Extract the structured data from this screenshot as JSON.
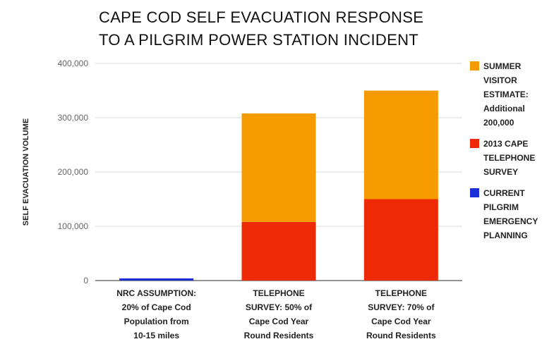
{
  "chart_data": {
    "type": "bar",
    "stacked": true,
    "title_lines": [
      "CAPE COD SELF EVACUATION RESPONSE",
      "TO A PILGRIM POWER STATION INCIDENT"
    ],
    "ylabel": "SELF EVACUATION VOLUME",
    "xlabel": "",
    "ylim": [
      0,
      400000
    ],
    "yticks": [
      "0",
      "100,000",
      "200,000",
      "300,000",
      "400,000"
    ],
    "ytick_values": [
      0,
      100000,
      200000,
      300000,
      400000
    ],
    "grid": true,
    "legend_position": "right",
    "categories": [
      [
        "NRC ASSUMPTION:",
        "20% of Cape Cod",
        "Population from",
        "10-15 miles"
      ],
      [
        "TELEPHONE",
        "SURVEY: 50% of",
        "Cape Cod Year",
        "Round Residents"
      ],
      [
        "TELEPHONE",
        "SURVEY: 70% of",
        "Cape Cod Year",
        "Round Residents"
      ]
    ],
    "series": [
      {
        "name": "CURRENT PILGRIM EMERGENCY PLANNING",
        "legend_lines": [
          "CURRENT",
          "PILGRIM",
          "EMERGENCY",
          "PLANNING"
        ],
        "color": "#1a2fd6",
        "values": [
          4000,
          0,
          0
        ]
      },
      {
        "name": "2013 CAPE TELEPHONE SURVEY",
        "legend_lines": [
          "2013 CAPE",
          "TELEPHONE",
          "SURVEY"
        ],
        "color": "#ee2a06",
        "values": [
          0,
          108000,
          150000
        ]
      },
      {
        "name": "SUMMER VISITOR ESTIMATE: Additional 200,000",
        "legend_lines": [
          "SUMMER",
          "VISITOR",
          "ESTIMATE:",
          "Additional",
          "200,000"
        ],
        "color": "#f59b00",
        "values": [
          0,
          200000,
          200000
        ]
      }
    ],
    "legend_order": [
      2,
      1,
      0
    ]
  }
}
